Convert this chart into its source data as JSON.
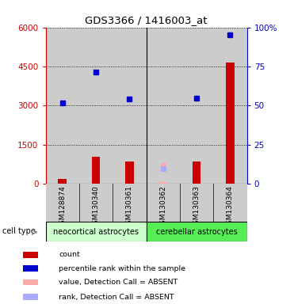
{
  "title": "GDS3366 / 1416003_at",
  "samples": [
    "GSM128874",
    "GSM130340",
    "GSM130361",
    "GSM130362",
    "GSM130363",
    "GSM130364"
  ],
  "count_values": [
    200,
    1050,
    850,
    60,
    850,
    4650
  ],
  "percentile_values": [
    3100,
    4300,
    3250,
    null,
    3300,
    5700
  ],
  "absent_value_values": [
    null,
    null,
    null,
    700,
    null,
    null
  ],
  "absent_rank_values": [
    null,
    null,
    null,
    580,
    null,
    null
  ],
  "count_absent": [
    false,
    false,
    false,
    true,
    false,
    false
  ],
  "ylim_left": [
    0,
    6000
  ],
  "ylim_right": [
    0,
    100
  ],
  "yticks_left": [
    0,
    1500,
    3000,
    4500,
    6000
  ],
  "ytick_labels_left": [
    "0",
    "1500",
    "3000",
    "4500",
    "6000"
  ],
  "yticks_right": [
    0,
    25,
    50,
    75,
    100
  ],
  "ytick_labels_right": [
    "0",
    "25",
    "50",
    "75",
    "100%"
  ],
  "group1_label": "neocortical astrocytes",
  "group2_label": "cerebellar astrocytes",
  "cell_type_label": "cell type",
  "bar_color": "#cc0000",
  "bar_absent_color": "#ffaaaa",
  "dot_color": "#0000cc",
  "dot_absent_color": "#aaaaff",
  "axis_left_color": "#cc0000",
  "axis_right_color": "#0000cc",
  "plot_bg_color": "#ffffff",
  "group1_bg": "#ccffcc",
  "group2_bg": "#55ee55",
  "sample_bg": "#cccccc",
  "legend_colors": [
    "#cc0000",
    "#0000cc",
    "#ffaaaa",
    "#aaaaff"
  ],
  "legend_labels": [
    "count",
    "percentile rank within the sample",
    "value, Detection Call = ABSENT",
    "rank, Detection Call = ABSENT"
  ]
}
